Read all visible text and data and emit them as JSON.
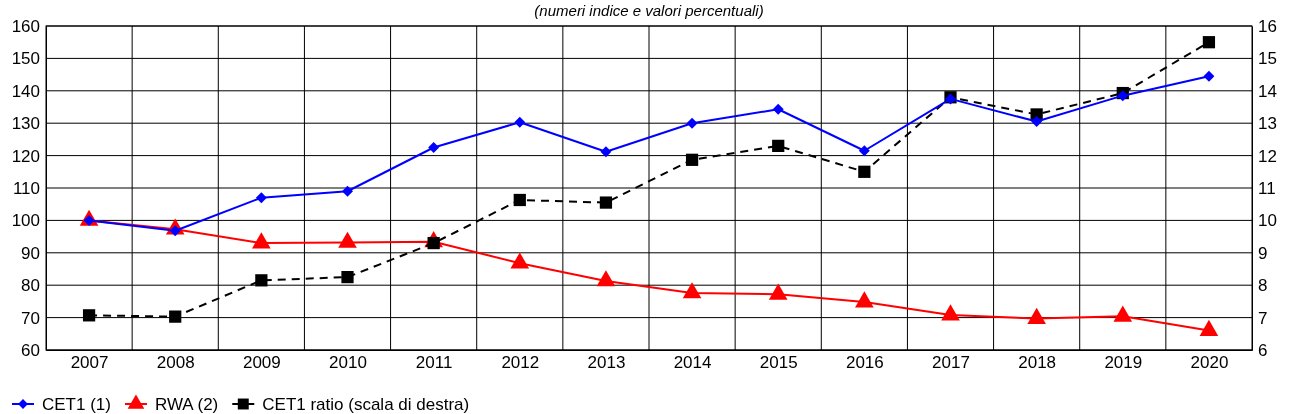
{
  "chart_data": {
    "type": "line",
    "subtitle": "(numeri indice e valori percentuali)",
    "categories": [
      "2007",
      "2008",
      "2009",
      "2010",
      "2011",
      "2012",
      "2013",
      "2014",
      "2015",
      "2016",
      "2017",
      "2018",
      "2019",
      "2020"
    ],
    "series": [
      {
        "name": "CET1 (1)",
        "color": "#0000ff",
        "marker": "diamond",
        "line_style": "solid",
        "values": [
          100,
          96.8,
          107,
          109,
          122.5,
          130.3,
          121.2,
          130,
          134.3,
          121.5,
          137.5,
          130.5,
          138.5,
          144.5
        ]
      },
      {
        "name": "RWA (2)",
        "color": "#ff0000",
        "marker": "triangle",
        "line_style": "solid",
        "values": [
          100,
          97.3,
          93,
          93.2,
          93.4,
          86.8,
          81.3,
          77.6,
          77.2,
          74.8,
          70.8,
          69.7,
          70.4,
          66
        ]
      },
      {
        "name": "CET1 ratio (scala di destra)",
        "color": "#000000",
        "marker": "square",
        "line_style": "dashed",
        "axis": "y2",
        "values": [
          7.07,
          7.03,
          8.15,
          8.25,
          9.3,
          10.63,
          10.55,
          11.87,
          12.3,
          11.5,
          13.8,
          13.27,
          13.93,
          15.5
        ]
      }
    ],
    "ylim": [
      60,
      160
    ],
    "yticks": [
      60,
      70,
      80,
      90,
      100,
      110,
      120,
      130,
      140,
      150,
      160
    ],
    "y2lim": [
      6,
      16
    ],
    "y2ticks": [
      6,
      7,
      8,
      9,
      10,
      11,
      12,
      13,
      14,
      15,
      16
    ],
    "grid": true,
    "legend": "bottom left"
  }
}
